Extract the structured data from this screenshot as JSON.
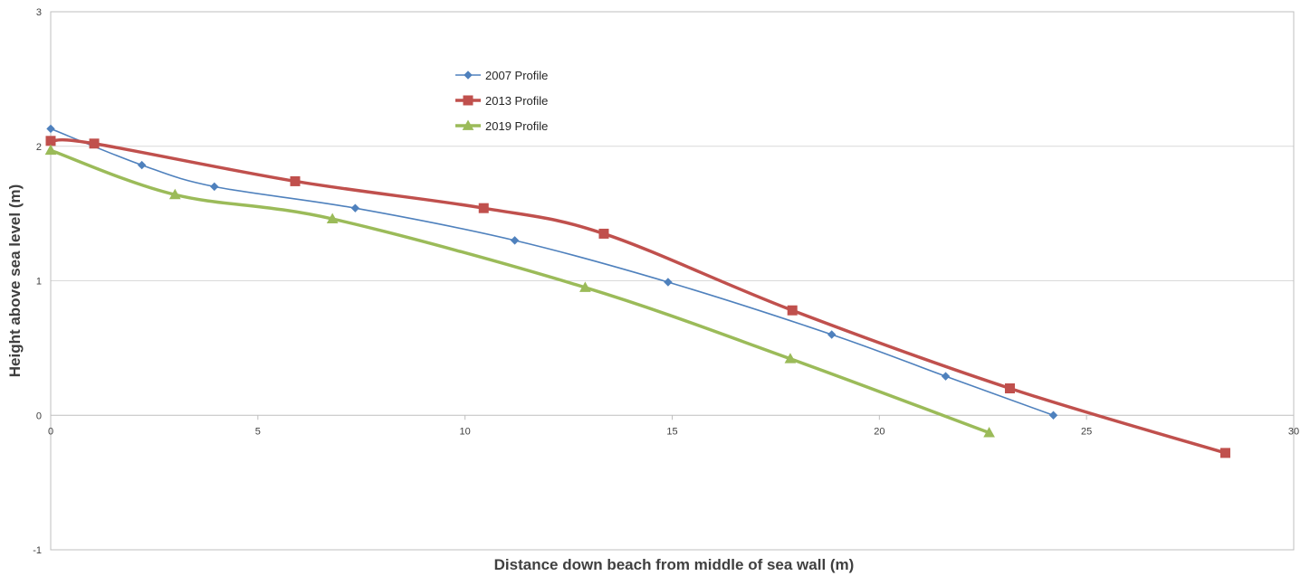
{
  "chart_data": {
    "type": "scatter",
    "title": "",
    "xlabel": "Distance down beach from middle of sea wall (m)",
    "ylabel": "Height above sea level (m)",
    "xlim": [
      0,
      30
    ],
    "ylim": [
      -1,
      3
    ],
    "xticks": [
      0,
      5,
      10,
      15,
      20,
      25,
      30
    ],
    "yticks": [
      -1,
      0,
      1,
      2,
      3
    ],
    "grid": "horizontal",
    "legend_position": "top-center",
    "smoothed_lines": true,
    "series": [
      {
        "name": "2007 Profile",
        "color": "#4F81BD",
        "marker": "diamond",
        "x": [
          0,
          2.2,
          3.95,
          7.35,
          11.2,
          14.9,
          18.85,
          21.6,
          24.2
        ],
        "y": [
          2.13,
          1.86,
          1.7,
          1.54,
          1.3,
          0.99,
          0.6,
          0.29,
          0.0
        ]
      },
      {
        "name": "2013 Profile",
        "color": "#C0504D",
        "marker": "square",
        "x": [
          0,
          1.05,
          5.9,
          10.45,
          13.35,
          17.9,
          23.15,
          28.35
        ],
        "y": [
          2.04,
          2.02,
          1.74,
          1.54,
          1.35,
          0.78,
          0.2,
          -0.28
        ]
      },
      {
        "name": "2019 Profile",
        "color": "#9BBB59",
        "marker": "triangle",
        "x": [
          0,
          3.0,
          6.8,
          12.9,
          17.85,
          22.65
        ],
        "y": [
          1.97,
          1.64,
          1.46,
          0.95,
          0.42,
          -0.13
        ]
      }
    ]
  }
}
